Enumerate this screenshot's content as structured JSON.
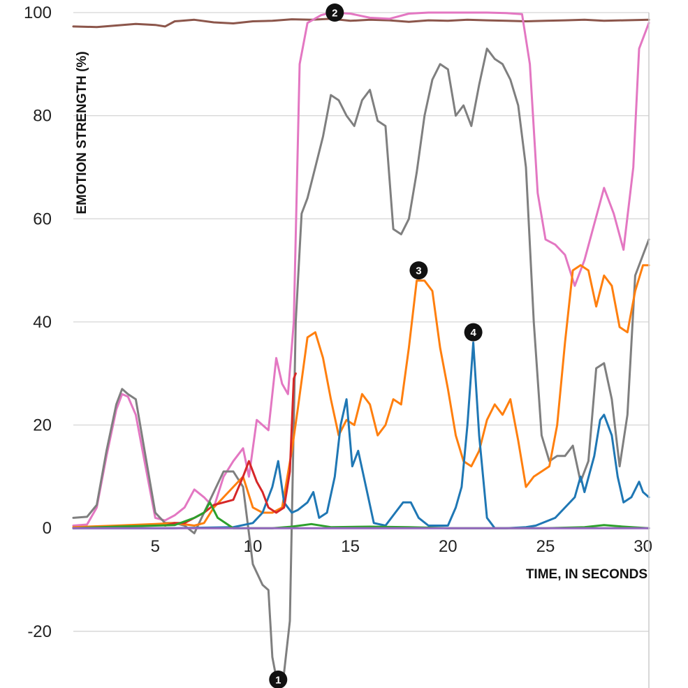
{
  "chart_data": {
    "type": "line",
    "title": "",
    "xlabel": "TIME, IN SECONDS",
    "ylabel": "EMOTION STRENGTH (%)",
    "xlim": [
      0.8,
      30.3
    ],
    "ylim": [
      -31,
      100
    ],
    "x_ticks": [
      5,
      10,
      15,
      20,
      25,
      30
    ],
    "y_ticks": [
      -20,
      0,
      20,
      40,
      60,
      80,
      100
    ],
    "grid": "horizontal",
    "series": [
      {
        "color": "#8c564b",
        "points": [
          [
            0.8,
            97.3
          ],
          [
            2,
            97.2
          ],
          [
            3,
            97.5
          ],
          [
            4,
            97.8
          ],
          [
            5,
            97.6
          ],
          [
            5.5,
            97.3
          ],
          [
            6,
            98.3
          ],
          [
            7,
            98.6
          ],
          [
            8,
            98.1
          ],
          [
            9,
            97.9
          ],
          [
            10,
            98.3
          ],
          [
            11,
            98.4
          ],
          [
            12,
            98.7
          ],
          [
            13,
            98.6
          ],
          [
            14,
            98.8
          ],
          [
            15,
            98.4
          ],
          [
            16,
            98.6
          ],
          [
            17,
            98.5
          ],
          [
            18,
            98.2
          ],
          [
            19,
            98.5
          ],
          [
            20,
            98.4
          ],
          [
            21,
            98.6
          ],
          [
            22,
            98.5
          ],
          [
            23,
            98.4
          ],
          [
            24,
            98.3
          ],
          [
            25,
            98.4
          ],
          [
            26,
            98.5
          ],
          [
            27,
            98.6
          ],
          [
            28,
            98.4
          ],
          [
            29,
            98.5
          ],
          [
            30.3,
            98.6
          ]
        ]
      },
      {
        "color": "#e377c2",
        "points": [
          [
            0.8,
            0.5
          ],
          [
            1.5,
            0.7
          ],
          [
            2,
            4
          ],
          [
            2.5,
            14
          ],
          [
            3,
            23
          ],
          [
            3.3,
            26
          ],
          [
            3.6,
            25.5
          ],
          [
            4,
            22
          ],
          [
            4.5,
            12
          ],
          [
            5,
            2
          ],
          [
            5.5,
            1.5
          ],
          [
            6,
            2.5
          ],
          [
            6.5,
            4
          ],
          [
            7,
            7.5
          ],
          [
            7.5,
            6
          ],
          [
            8,
            4
          ],
          [
            8.5,
            10
          ],
          [
            9,
            13
          ],
          [
            9.5,
            15.5
          ],
          [
            9.8,
            10
          ],
          [
            10.2,
            21
          ],
          [
            10.8,
            19
          ],
          [
            11.2,
            33
          ],
          [
            11.5,
            28
          ],
          [
            11.8,
            26
          ],
          [
            12.1,
            40
          ],
          [
            12.4,
            90
          ],
          [
            12.8,
            98
          ],
          [
            13.5,
            99.5
          ],
          [
            14,
            100
          ],
          [
            15,
            99.8
          ],
          [
            16,
            99
          ],
          [
            17,
            98.8
          ],
          [
            18,
            99.8
          ],
          [
            19,
            100
          ],
          [
            20,
            100
          ],
          [
            21,
            100
          ],
          [
            22,
            100
          ],
          [
            23,
            99.9
          ],
          [
            23.8,
            99.7
          ],
          [
            24.2,
            90
          ],
          [
            24.6,
            65
          ],
          [
            25,
            56
          ],
          [
            25.5,
            55
          ],
          [
            26,
            53
          ],
          [
            26.5,
            47
          ],
          [
            27,
            52
          ],
          [
            27.5,
            59
          ],
          [
            28,
            66
          ],
          [
            28.5,
            61
          ],
          [
            29,
            54
          ],
          [
            29.5,
            70
          ],
          [
            29.8,
            93
          ],
          [
            30.3,
            98
          ]
        ]
      },
      {
        "color": "#7f7f7f",
        "points": [
          [
            0.8,
            2
          ],
          [
            1.5,
            2.2
          ],
          [
            2,
            4.5
          ],
          [
            2.5,
            15
          ],
          [
            3,
            24
          ],
          [
            3.3,
            27
          ],
          [
            3.6,
            26
          ],
          [
            4,
            25
          ],
          [
            4.5,
            14
          ],
          [
            5,
            3
          ],
          [
            5.5,
            1
          ],
          [
            6,
            1
          ],
          [
            6.5,
            0.5
          ],
          [
            7,
            -1
          ],
          [
            7.5,
            3
          ],
          [
            8,
            7
          ],
          [
            8.5,
            11
          ],
          [
            9,
            11
          ],
          [
            9.5,
            8
          ],
          [
            10,
            -7
          ],
          [
            10.5,
            -11
          ],
          [
            10.8,
            -12
          ],
          [
            11,
            -25
          ],
          [
            11.3,
            -31
          ],
          [
            11.6,
            -28
          ],
          [
            11.9,
            -18
          ],
          [
            12.2,
            40
          ],
          [
            12.5,
            61
          ],
          [
            12.8,
            64
          ],
          [
            13.2,
            70
          ],
          [
            13.6,
            76
          ],
          [
            14,
            84
          ],
          [
            14.4,
            83
          ],
          [
            14.8,
            80
          ],
          [
            15.2,
            78
          ],
          [
            15.6,
            83
          ],
          [
            16,
            85
          ],
          [
            16.4,
            79
          ],
          [
            16.8,
            78
          ],
          [
            17.2,
            58
          ],
          [
            17.6,
            57
          ],
          [
            18,
            60
          ],
          [
            18.4,
            69
          ],
          [
            18.8,
            80
          ],
          [
            19.2,
            87
          ],
          [
            19.6,
            90
          ],
          [
            20,
            89
          ],
          [
            20.4,
            80
          ],
          [
            20.8,
            82
          ],
          [
            21.2,
            78
          ],
          [
            21.6,
            86
          ],
          [
            22,
            93
          ],
          [
            22.4,
            91
          ],
          [
            22.8,
            90
          ],
          [
            23.2,
            87
          ],
          [
            23.6,
            82
          ],
          [
            24,
            70
          ],
          [
            24.4,
            40
          ],
          [
            24.8,
            18
          ],
          [
            25.2,
            13
          ],
          [
            25.6,
            14
          ],
          [
            26,
            14
          ],
          [
            26.4,
            16
          ],
          [
            26.8,
            9
          ],
          [
            27.2,
            13
          ],
          [
            27.6,
            31
          ],
          [
            28,
            32
          ],
          [
            28.4,
            25
          ],
          [
            28.8,
            12
          ],
          [
            29.2,
            22
          ],
          [
            29.6,
            49
          ],
          [
            30,
            53
          ],
          [
            30.3,
            56
          ]
        ]
      },
      {
        "color": "#ff7f0e",
        "points": [
          [
            0.8,
            0.2
          ],
          [
            3,
            0.5
          ],
          [
            5,
            0.8
          ],
          [
            6,
            1
          ],
          [
            7,
            0.5
          ],
          [
            7.5,
            1
          ],
          [
            8,
            4
          ],
          [
            8.5,
            6
          ],
          [
            9,
            8
          ],
          [
            9.5,
            10
          ],
          [
            10,
            4
          ],
          [
            10.5,
            3
          ],
          [
            11,
            3
          ],
          [
            11.5,
            4
          ],
          [
            12,
            15
          ],
          [
            12.3,
            23
          ],
          [
            12.8,
            37
          ],
          [
            13.2,
            38
          ],
          [
            13.6,
            33
          ],
          [
            14,
            25
          ],
          [
            14.4,
            18
          ],
          [
            14.8,
            21
          ],
          [
            15.2,
            20
          ],
          [
            15.6,
            26
          ],
          [
            16,
            24
          ],
          [
            16.4,
            18
          ],
          [
            16.8,
            20
          ],
          [
            17.2,
            25
          ],
          [
            17.6,
            24
          ],
          [
            18,
            35
          ],
          [
            18.4,
            48
          ],
          [
            18.8,
            48
          ],
          [
            19.2,
            46
          ],
          [
            19.6,
            35
          ],
          [
            20,
            27
          ],
          [
            20.4,
            18
          ],
          [
            20.8,
            13
          ],
          [
            21.2,
            12
          ],
          [
            21.6,
            15
          ],
          [
            22,
            21
          ],
          [
            22.4,
            24
          ],
          [
            22.8,
            22
          ],
          [
            23.2,
            25
          ],
          [
            23.6,
            17
          ],
          [
            24,
            8
          ],
          [
            24.4,
            10
          ],
          [
            24.8,
            11
          ],
          [
            25.2,
            12
          ],
          [
            25.6,
            20
          ],
          [
            26,
            36
          ],
          [
            26.4,
            50
          ],
          [
            26.8,
            51
          ],
          [
            27.2,
            50
          ],
          [
            27.6,
            43
          ],
          [
            28,
            49
          ],
          [
            28.4,
            47
          ],
          [
            28.8,
            39
          ],
          [
            29.2,
            38
          ],
          [
            29.6,
            46
          ],
          [
            30,
            51
          ],
          [
            30.3,
            51
          ]
        ]
      },
      {
        "color": "#1f77b4",
        "points": [
          [
            0.8,
            0
          ],
          [
            6,
            0
          ],
          [
            9,
            0.2
          ],
          [
            10,
            1
          ],
          [
            10.5,
            3
          ],
          [
            11,
            8
          ],
          [
            11.3,
            13
          ],
          [
            11.6,
            5
          ],
          [
            12,
            3
          ],
          [
            12.3,
            3.5
          ],
          [
            12.8,
            5
          ],
          [
            13.1,
            7
          ],
          [
            13.4,
            2
          ],
          [
            13.8,
            3
          ],
          [
            14.2,
            10
          ],
          [
            14.5,
            20
          ],
          [
            14.8,
            25
          ],
          [
            15.1,
            12
          ],
          [
            15.4,
            15
          ],
          [
            15.8,
            8
          ],
          [
            16.2,
            1
          ],
          [
            16.8,
            0.5
          ],
          [
            17.3,
            3
          ],
          [
            17.7,
            5
          ],
          [
            18.1,
            5
          ],
          [
            18.5,
            2
          ],
          [
            19,
            0.5
          ],
          [
            20,
            0.5
          ],
          [
            20.4,
            4
          ],
          [
            20.7,
            8
          ],
          [
            21,
            20
          ],
          [
            21.3,
            36
          ],
          [
            21.6,
            18
          ],
          [
            22,
            2
          ],
          [
            22.4,
            0
          ],
          [
            23,
            0
          ],
          [
            24,
            0.2
          ],
          [
            24.5,
            0.5
          ],
          [
            25.5,
            2
          ],
          [
            26,
            4
          ],
          [
            26.5,
            6
          ],
          [
            26.8,
            10
          ],
          [
            27,
            7
          ],
          [
            27.5,
            14
          ],
          [
            27.8,
            21
          ],
          [
            28,
            22
          ],
          [
            28.4,
            18
          ],
          [
            28.7,
            10
          ],
          [
            29,
            5
          ],
          [
            29.4,
            6
          ],
          [
            29.8,
            9
          ],
          [
            30,
            7
          ],
          [
            30.3,
            6
          ]
        ]
      },
      {
        "color": "#d62728",
        "points": [
          [
            5.5,
            0.5
          ],
          [
            6,
            1
          ],
          [
            6.5,
            1
          ],
          [
            7,
            2
          ],
          [
            7.5,
            3
          ],
          [
            8,
            4.5
          ],
          [
            8.5,
            5
          ],
          [
            9,
            5.5
          ],
          [
            9.5,
            10
          ],
          [
            9.8,
            13
          ],
          [
            10.2,
            9
          ],
          [
            10.5,
            7
          ],
          [
            10.8,
            4
          ],
          [
            11.2,
            3
          ],
          [
            11.6,
            4
          ],
          [
            11.9,
            11
          ],
          [
            12.1,
            29
          ],
          [
            12.2,
            30
          ]
        ]
      },
      {
        "color": "#2ca02c",
        "points": [
          [
            0.8,
            0
          ],
          [
            3,
            0.3
          ],
          [
            5,
            0.5
          ],
          [
            6,
            0.6
          ],
          [
            7,
            2
          ],
          [
            7.5,
            3
          ],
          [
            7.8,
            5
          ],
          [
            8.2,
            2
          ],
          [
            9,
            0
          ],
          [
            11,
            0
          ],
          [
            12,
            0.3
          ],
          [
            13,
            0.8
          ],
          [
            14,
            0.2
          ],
          [
            16,
            0.3
          ],
          [
            18,
            0.2
          ],
          [
            20,
            0
          ],
          [
            25,
            0
          ],
          [
            27,
            0.2
          ],
          [
            28,
            0.6
          ],
          [
            29,
            0.3
          ],
          [
            30.3,
            0
          ]
        ]
      },
      {
        "color": "#9467bd",
        "points": [
          [
            0.8,
            0
          ],
          [
            30.3,
            0
          ]
        ]
      }
    ],
    "annotations": [
      {
        "label": "1",
        "x": 11.3,
        "y": -31
      },
      {
        "label": "2",
        "x": 14.2,
        "y": 100
      },
      {
        "label": "3",
        "x": 18.5,
        "y": 50
      },
      {
        "label": "4",
        "x": 21.3,
        "y": 38
      }
    ]
  }
}
